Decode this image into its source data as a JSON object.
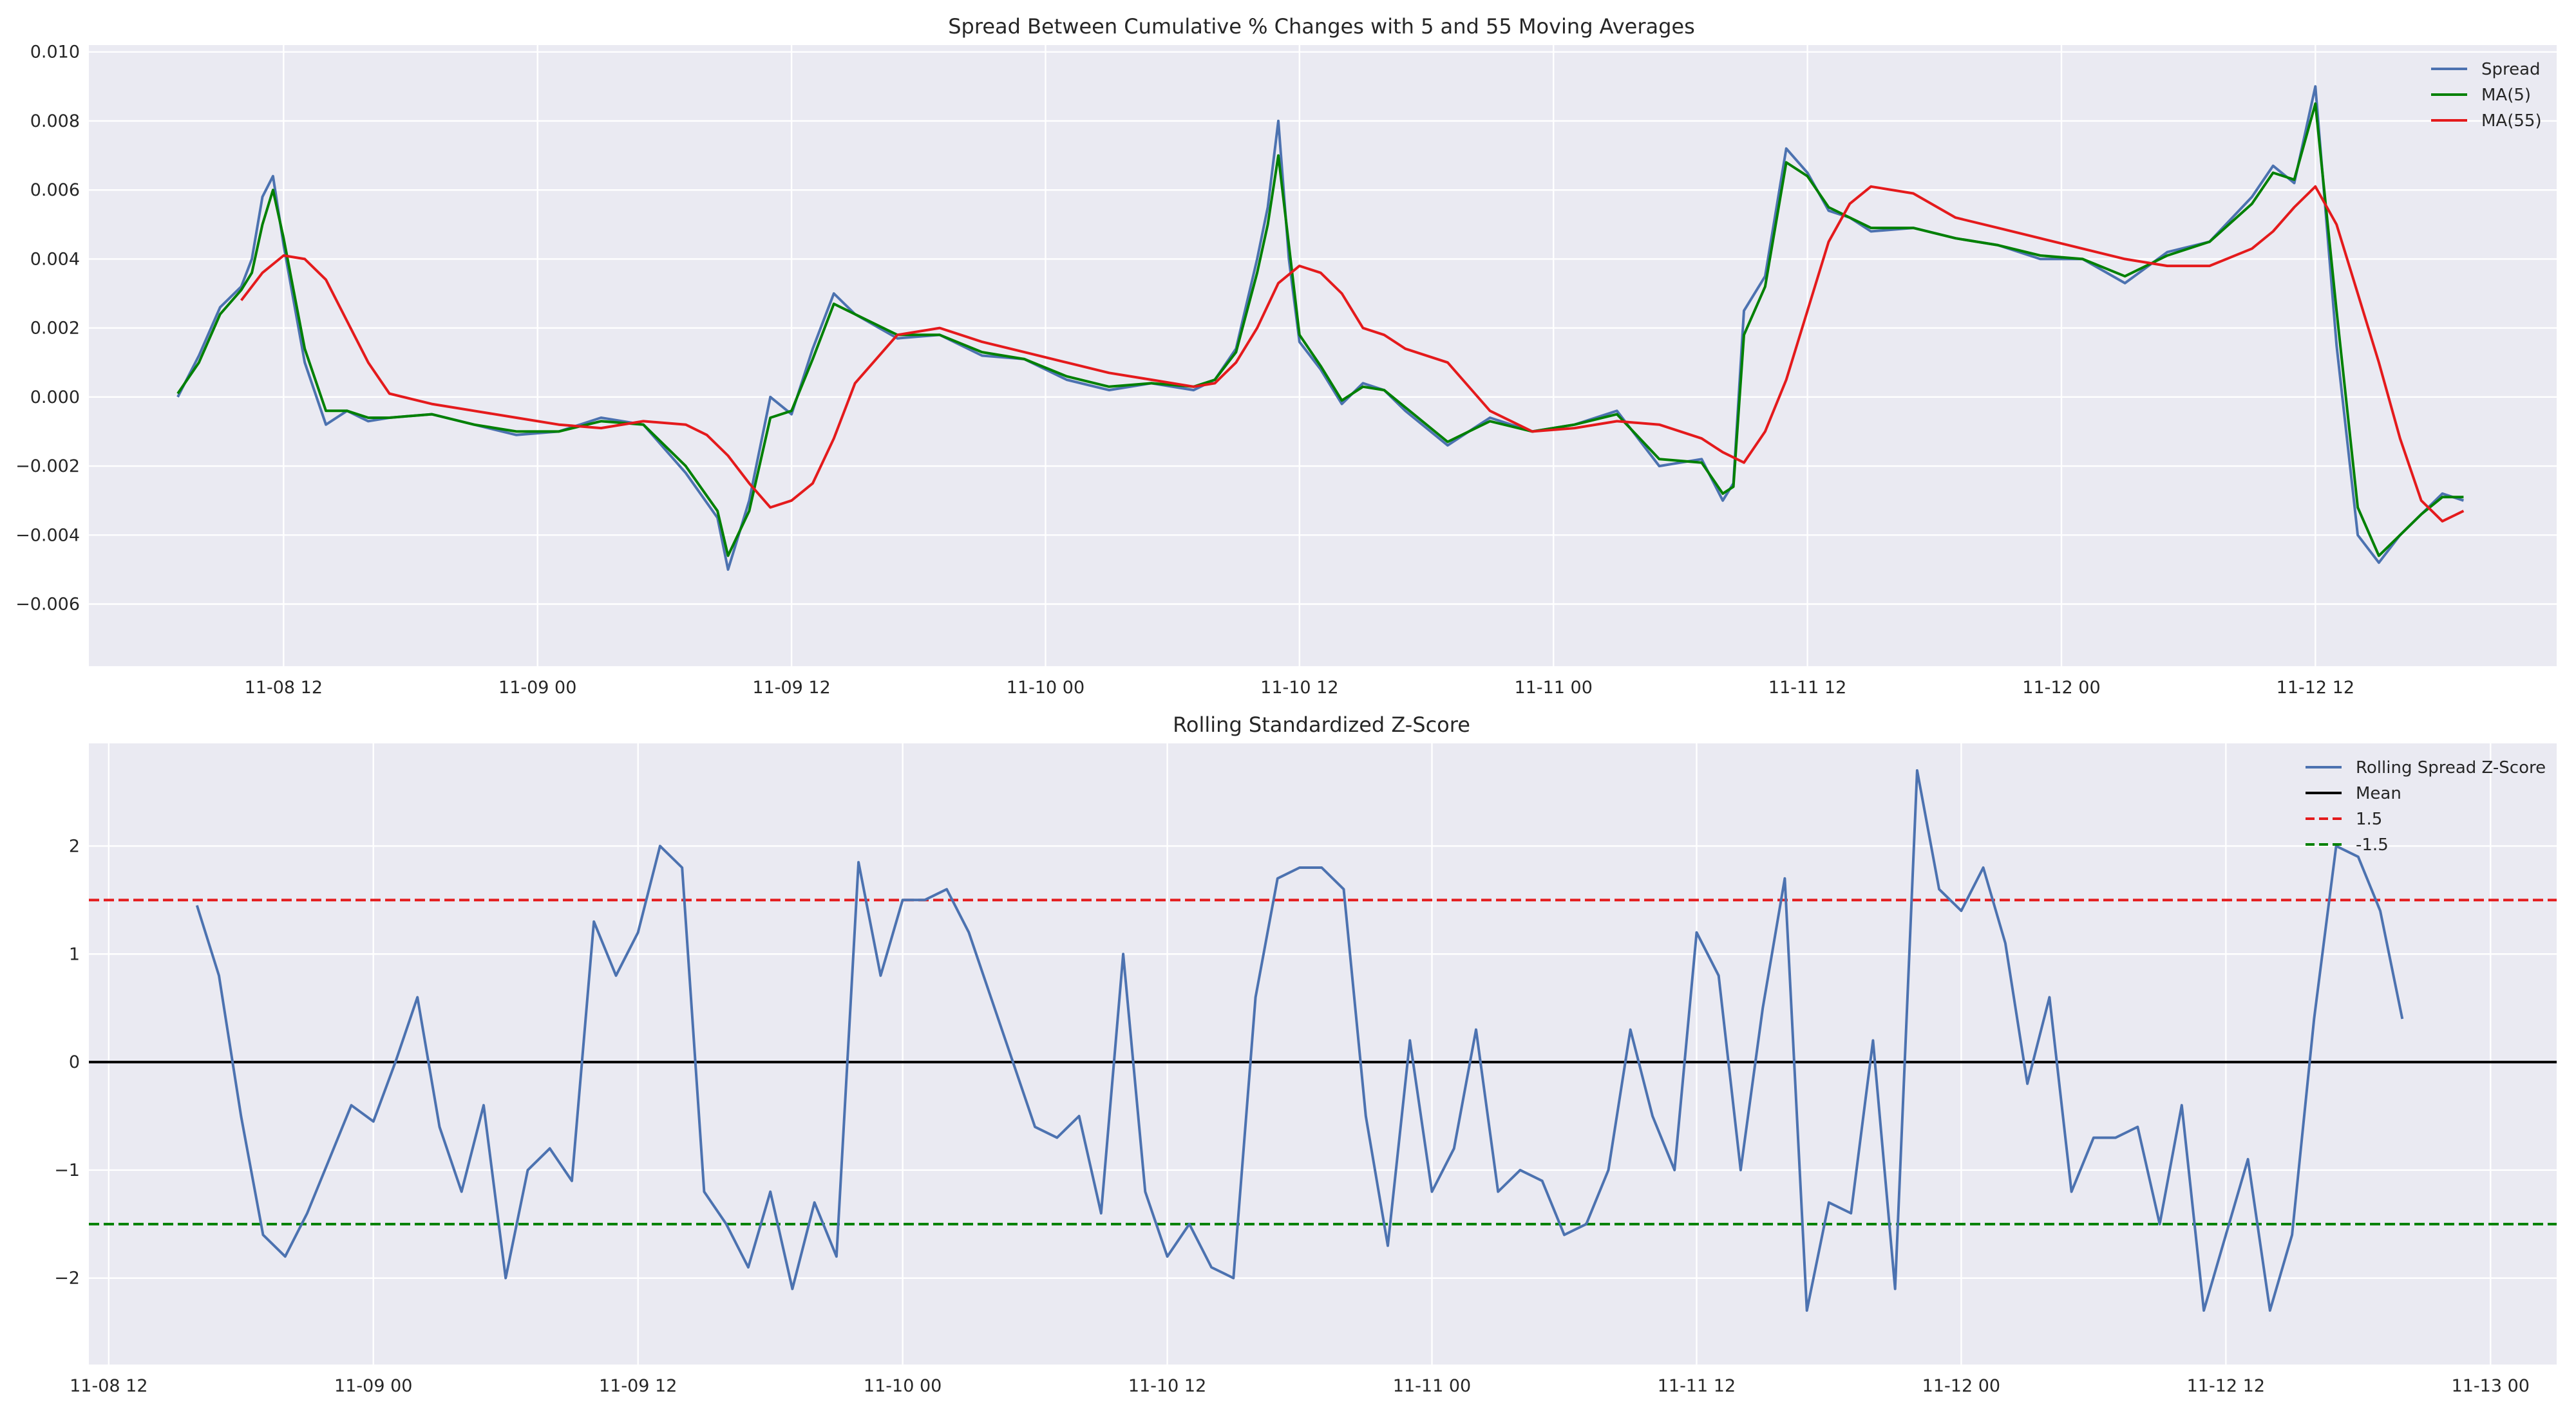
{
  "chart_data": [
    {
      "type": "line",
      "title": "Spread Between Cumulative % Changes with 5 and 55 Moving Averages",
      "xlabel": "",
      "ylabel": "",
      "ylim": [
        -0.0078,
        0.0102
      ],
      "yticks": [
        -0.006,
        -0.004,
        -0.002,
        0.0,
        0.002,
        0.004,
        0.006,
        0.008,
        0.01
      ],
      "ytick_labels": [
        "−0.006",
        "−0.004",
        "−0.002",
        "0.000",
        "0.002",
        "0.004",
        "0.006",
        "0.008",
        "0.010"
      ],
      "xticks": [
        "11-08 12",
        "11-09 00",
        "11-09 12",
        "11-10 00",
        "11-10 12",
        "11-11 00",
        "11-11 12",
        "11-12 00",
        "11-12 12"
      ],
      "grid": true,
      "legend_position": "top-right",
      "series": [
        {
          "name": "Spread",
          "color": "#4c72b0",
          "x": [
            "11-08 07:00",
            "11-08 08:00",
            "11-08 09:00",
            "11-08 10:00",
            "11-08 10:30",
            "11-08 11:00",
            "11-08 11:30",
            "11-08 12:00",
            "11-08 13:00",
            "11-08 14:00",
            "11-08 15:00",
            "11-08 16:00",
            "11-08 17:00",
            "11-08 19:00",
            "11-08 21:00",
            "11-08 23:00",
            "11-09 01:00",
            "11-09 03:00",
            "11-09 05:00",
            "11-09 07:00",
            "11-09 08:30",
            "11-09 09:00",
            "11-09 10:00",
            "11-09 11:00",
            "11-09 12:00",
            "11-09 13:00",
            "11-09 14:00",
            "11-09 15:00",
            "11-09 17:00",
            "11-09 19:00",
            "11-09 21:00",
            "11-09 23:00",
            "11-10 01:00",
            "11-10 03:00",
            "11-10 05:00",
            "11-10 07:00",
            "11-10 08:00",
            "11-10 09:00",
            "11-10 10:00",
            "11-10 10:30",
            "11-10 11:00",
            "11-10 11:30",
            "11-10 12:00",
            "11-10 13:00",
            "11-10 14:00",
            "11-10 15:00",
            "11-10 16:00",
            "11-10 17:00",
            "11-10 19:00",
            "11-10 21:00",
            "11-10 23:00",
            "11-11 01:00",
            "11-11 03:00",
            "11-11 05:00",
            "11-11 07:00",
            "11-11 08:00",
            "11-11 08:30",
            "11-11 09:00",
            "11-11 10:00",
            "11-11 11:00",
            "11-11 12:00",
            "11-11 13:00",
            "11-11 14:00",
            "11-11 15:00",
            "11-11 17:00",
            "11-11 19:00",
            "11-11 21:00",
            "11-11 23:00",
            "11-12 01:00",
            "11-12 03:00",
            "11-12 05:00",
            "11-12 07:00",
            "11-12 09:00",
            "11-12 10:00",
            "11-12 11:00",
            "11-12 12:00",
            "11-12 13:00",
            "11-12 14:00",
            "11-12 15:00",
            "11-12 16:00",
            "11-12 17:00",
            "11-12 18:00",
            "11-12 19:00"
          ],
          "values": [
            0.0,
            0.0012,
            0.0026,
            0.0032,
            0.004,
            0.0058,
            0.0064,
            0.0044,
            0.001,
            -0.0008,
            -0.0004,
            -0.0007,
            -0.0006,
            -0.0005,
            -0.0008,
            -0.0011,
            -0.001,
            -0.0006,
            -0.0008,
            -0.0022,
            -0.0035,
            -0.005,
            -0.003,
            0.0,
            -0.0005,
            0.0014,
            0.003,
            0.0024,
            0.0017,
            0.0018,
            0.0012,
            0.0011,
            0.0005,
            0.0002,
            0.0004,
            0.0002,
            0.0005,
            0.0014,
            0.004,
            0.0055,
            0.008,
            0.004,
            0.0016,
            0.0008,
            -0.0002,
            0.0004,
            0.0002,
            -0.0004,
            -0.0014,
            -0.0006,
            -0.001,
            -0.0008,
            -0.0004,
            -0.002,
            -0.0018,
            -0.003,
            -0.0025,
            0.0025,
            0.0035,
            0.0072,
            0.0065,
            0.0054,
            0.0052,
            0.0048,
            0.0049,
            0.0046,
            0.0044,
            0.004,
            0.004,
            0.0033,
            0.0042,
            0.0045,
            0.0058,
            0.0067,
            0.0062,
            0.009,
            0.0015,
            -0.004,
            -0.0048,
            -0.004,
            -0.0034,
            -0.0028,
            -0.003
          ]
        },
        {
          "name": "MA(5)",
          "color": "#008000",
          "x": [
            "11-08 07:00",
            "11-08 08:00",
            "11-08 09:00",
            "11-08 10:00",
            "11-08 10:30",
            "11-08 11:00",
            "11-08 11:30",
            "11-08 12:00",
            "11-08 13:00",
            "11-08 14:00",
            "11-08 15:00",
            "11-08 16:00",
            "11-08 17:00",
            "11-08 19:00",
            "11-08 21:00",
            "11-08 23:00",
            "11-09 01:00",
            "11-09 03:00",
            "11-09 05:00",
            "11-09 07:00",
            "11-09 08:30",
            "11-09 09:00",
            "11-09 10:00",
            "11-09 11:00",
            "11-09 12:00",
            "11-09 13:00",
            "11-09 14:00",
            "11-09 15:00",
            "11-09 17:00",
            "11-09 19:00",
            "11-09 21:00",
            "11-09 23:00",
            "11-10 01:00",
            "11-10 03:00",
            "11-10 05:00",
            "11-10 07:00",
            "11-10 08:00",
            "11-10 09:00",
            "11-10 10:00",
            "11-10 10:30",
            "11-10 11:00",
            "11-10 11:30",
            "11-10 12:00",
            "11-10 13:00",
            "11-10 14:00",
            "11-10 15:00",
            "11-10 16:00",
            "11-10 17:00",
            "11-10 19:00",
            "11-10 21:00",
            "11-10 23:00",
            "11-11 01:00",
            "11-11 03:00",
            "11-11 05:00",
            "11-11 07:00",
            "11-11 08:00",
            "11-11 08:30",
            "11-11 09:00",
            "11-11 10:00",
            "11-11 11:00",
            "11-11 12:00",
            "11-11 13:00",
            "11-11 14:00",
            "11-11 15:00",
            "11-11 17:00",
            "11-11 19:00",
            "11-11 21:00",
            "11-11 23:00",
            "11-12 01:00",
            "11-12 03:00",
            "11-12 05:00",
            "11-12 07:00",
            "11-12 09:00",
            "11-12 10:00",
            "11-12 11:00",
            "11-12 12:00",
            "11-12 13:00",
            "11-12 14:00",
            "11-12 15:00",
            "11-12 16:00",
            "11-12 17:00",
            "11-12 18:00",
            "11-12 19:00"
          ],
          "values": [
            0.0001,
            0.001,
            0.0024,
            0.0031,
            0.0036,
            0.005,
            0.006,
            0.0046,
            0.0014,
            -0.0004,
            -0.0004,
            -0.0006,
            -0.0006,
            -0.0005,
            -0.0008,
            -0.001,
            -0.001,
            -0.0007,
            -0.0008,
            -0.002,
            -0.0033,
            -0.0046,
            -0.0033,
            -0.0006,
            -0.0004,
            0.0011,
            0.0027,
            0.0024,
            0.0018,
            0.0018,
            0.0013,
            0.0011,
            0.0006,
            0.0003,
            0.0004,
            0.0003,
            0.0005,
            0.0013,
            0.0036,
            0.005,
            0.007,
            0.0044,
            0.0018,
            0.0009,
            -0.0001,
            0.0003,
            0.0002,
            -0.0003,
            -0.0013,
            -0.0007,
            -0.001,
            -0.0008,
            -0.0005,
            -0.0018,
            -0.0019,
            -0.0028,
            -0.0026,
            0.0018,
            0.0032,
            0.0068,
            0.0064,
            0.0055,
            0.0052,
            0.0049,
            0.0049,
            0.0046,
            0.0044,
            0.0041,
            0.004,
            0.0035,
            0.0041,
            0.0045,
            0.0056,
            0.0065,
            0.0063,
            0.0085,
            0.0025,
            -0.0032,
            -0.0046,
            -0.004,
            -0.0034,
            -0.0029,
            -0.0029
          ]
        },
        {
          "name": "MA(55)",
          "color": "#e41a1c",
          "x": [
            "11-08 10:00",
            "11-08 11:00",
            "11-08 12:00",
            "11-08 13:00",
            "11-08 14:00",
            "11-08 15:00",
            "11-08 16:00",
            "11-08 17:00",
            "11-08 19:00",
            "11-08 21:00",
            "11-08 23:00",
            "11-09 01:00",
            "11-09 03:00",
            "11-09 05:00",
            "11-09 07:00",
            "11-09 08:00",
            "11-09 09:00",
            "11-09 10:00",
            "11-09 11:00",
            "11-09 12:00",
            "11-09 13:00",
            "11-09 14:00",
            "11-09 15:00",
            "11-09 17:00",
            "11-09 19:00",
            "11-09 21:00",
            "11-09 23:00",
            "11-10 01:00",
            "11-10 03:00",
            "11-10 05:00",
            "11-10 07:00",
            "11-10 08:00",
            "11-10 09:00",
            "11-10 10:00",
            "11-10 11:00",
            "11-10 12:00",
            "11-10 13:00",
            "11-10 14:00",
            "11-10 15:00",
            "11-10 16:00",
            "11-10 17:00",
            "11-10 19:00",
            "11-10 21:00",
            "11-10 23:00",
            "11-11 01:00",
            "11-11 03:00",
            "11-11 05:00",
            "11-11 07:00",
            "11-11 08:00",
            "11-11 09:00",
            "11-11 10:00",
            "11-11 11:00",
            "11-11 12:00",
            "11-11 13:00",
            "11-11 14:00",
            "11-11 15:00",
            "11-11 17:00",
            "11-11 19:00",
            "11-11 21:00",
            "11-11 23:00",
            "11-12 01:00",
            "11-12 03:00",
            "11-12 05:00",
            "11-12 07:00",
            "11-12 09:00",
            "11-12 10:00",
            "11-12 11:00",
            "11-12 12:00",
            "11-12 13:00",
            "11-12 14:00",
            "11-12 15:00",
            "11-12 16:00",
            "11-12 17:00",
            "11-12 18:00",
            "11-12 19:00"
          ],
          "values": [
            0.0028,
            0.0036,
            0.0041,
            0.004,
            0.0034,
            0.0022,
            0.001,
            0.0001,
            -0.0002,
            -0.0004,
            -0.0006,
            -0.0008,
            -0.0009,
            -0.0007,
            -0.0008,
            -0.0011,
            -0.0017,
            -0.0025,
            -0.0032,
            -0.003,
            -0.0025,
            -0.0012,
            0.0004,
            0.0018,
            0.002,
            0.0016,
            0.0013,
            0.001,
            0.0007,
            0.0005,
            0.0003,
            0.0004,
            0.001,
            0.002,
            0.0033,
            0.0038,
            0.0036,
            0.003,
            0.002,
            0.0018,
            0.0014,
            0.001,
            -0.0004,
            -0.001,
            -0.0009,
            -0.0007,
            -0.0008,
            -0.0012,
            -0.0016,
            -0.0019,
            -0.001,
            0.0005,
            0.0025,
            0.0045,
            0.0056,
            0.0061,
            0.0059,
            0.0052,
            0.0049,
            0.0046,
            0.0043,
            0.004,
            0.0038,
            0.0038,
            0.0043,
            0.0048,
            0.0055,
            0.0061,
            0.005,
            0.003,
            0.001,
            -0.0012,
            -0.003,
            -0.0036,
            -0.0033
          ]
        }
      ]
    },
    {
      "type": "line",
      "title": "Rolling Standardized Z-Score",
      "xlabel": "",
      "ylabel": "",
      "ylim": [
        -2.8,
        2.95
      ],
      "yticks": [
        -2,
        -1,
        0,
        1,
        2
      ],
      "ytick_labels": [
        "−2",
        "−1",
        "0",
        "1",
        "2"
      ],
      "xticks": [
        "11-08 12",
        "11-09 00",
        "11-09 12",
        "11-10 00",
        "11-10 12",
        "11-11 00",
        "11-11 12",
        "11-12 00",
        "11-12 12",
        "11-13 00"
      ],
      "grid": true,
      "legend_position": "top-right",
      "series": [
        {
          "name": "Rolling Spread Z-Score",
          "color": "#4c72b0",
          "x": [
            "11-08 16:00",
            "11-08 17:00",
            "11-08 18:00",
            "11-08 19:00",
            "11-08 20:00",
            "11-08 21:00",
            "11-08 22:00",
            "11-08 23:00",
            "11-09 00:00",
            "11-09 01:00",
            "11-09 02:00",
            "11-09 03:00",
            "11-09 04:00",
            "11-09 05:00",
            "11-09 06:00",
            "11-09 07:00",
            "11-09 08:00",
            "11-09 09:00",
            "11-09 10:00",
            "11-09 11:00",
            "11-09 12:00",
            "11-09 13:00",
            "11-09 14:00",
            "11-09 15:00",
            "11-09 16:00",
            "11-09 17:00",
            "11-09 18:00",
            "11-09 19:00",
            "11-09 20:00",
            "11-09 21:00",
            "11-09 22:00",
            "11-09 23:00",
            "11-10 00:00",
            "11-10 01:00",
            "11-10 02:00",
            "11-10 03:00",
            "11-10 04:00",
            "11-10 05:00",
            "11-10 06:00",
            "11-10 07:00",
            "11-10 08:00",
            "11-10 09:00",
            "11-10 10:00",
            "11-10 11:00",
            "11-10 12:00",
            "11-10 13:00",
            "11-10 14:00",
            "11-10 15:00",
            "11-10 16:00",
            "11-10 17:00",
            "11-10 18:00",
            "11-10 19:00",
            "11-10 20:00",
            "11-10 21:00",
            "11-10 22:00",
            "11-10 23:00",
            "11-11 00:00",
            "11-11 01:00",
            "11-11 02:00",
            "11-11 03:00",
            "11-11 04:00",
            "11-11 05:00",
            "11-11 06:00",
            "11-11 07:00",
            "11-11 08:00",
            "11-11 09:00",
            "11-11 10:00",
            "11-11 11:00",
            "11-11 12:00",
            "11-11 13:00",
            "11-11 14:00",
            "11-11 15:00",
            "11-11 16:00",
            "11-11 17:00",
            "11-11 18:00",
            "11-11 19:00",
            "11-11 20:00",
            "11-11 21:00",
            "11-11 22:00",
            "11-11 23:00",
            "11-12 00:00",
            "11-12 01:00",
            "11-12 02:00",
            "11-12 03:00",
            "11-12 04:00",
            "11-12 05:00",
            "11-12 06:00",
            "11-12 07:00",
            "11-12 08:00",
            "11-12 09:00",
            "11-12 10:00",
            "11-12 11:00",
            "11-12 12:00",
            "11-12 13:00",
            "11-12 14:00",
            "11-12 15:00",
            "11-12 16:00",
            "11-12 17:00",
            "11-12 18:00",
            "11-12 19:00",
            "11-12 20:00"
          ],
          "values": [
            1.45,
            0.8,
            -0.5,
            -1.6,
            -1.8,
            -1.4,
            -0.9,
            -0.4,
            -0.55,
            0.0,
            0.6,
            -0.6,
            -1.2,
            -0.4,
            -2.0,
            -1.0,
            -0.8,
            -1.1,
            1.3,
            0.8,
            1.2,
            2.0,
            1.8,
            -1.2,
            -1.5,
            -1.9,
            -1.2,
            -2.1,
            -1.3,
            -1.8,
            1.85,
            0.8,
            1.5,
            1.5,
            1.6,
            1.2,
            0.6,
            0.0,
            -0.6,
            -0.7,
            -0.5,
            -1.4,
            1.0,
            -1.2,
            -1.8,
            -1.5,
            -1.9,
            -2.0,
            0.6,
            1.7,
            1.8,
            1.8,
            1.6,
            -0.5,
            -1.7,
            0.2,
            -1.2,
            -0.8,
            0.3,
            -1.2,
            -1.0,
            -1.1,
            -1.6,
            -1.5,
            -1.0,
            0.3,
            -0.5,
            -1.0,
            1.2,
            0.8,
            -1.0,
            0.5,
            1.7,
            -2.3,
            -1.3,
            -1.4,
            0.2,
            -2.1,
            2.7,
            1.6,
            1.4,
            1.8,
            1.1,
            -0.2,
            0.6,
            -1.2,
            -0.7,
            -0.7,
            -0.6,
            -1.5,
            -0.4,
            -2.3,
            -1.6,
            -0.9,
            -2.3,
            -1.6,
            0.4,
            2.0,
            1.9,
            1.4,
            0.4
          ]
        }
      ],
      "reference_lines": [
        {
          "name": "Mean",
          "value": 0,
          "color": "#000000",
          "style": "solid"
        },
        {
          "name": "1.5",
          "value": 1.5,
          "color": "#e41a1c",
          "style": "dashed"
        },
        {
          "name": "-1.5",
          "value": -1.5,
          "color": "#008000",
          "style": "dashed"
        }
      ]
    }
  ]
}
